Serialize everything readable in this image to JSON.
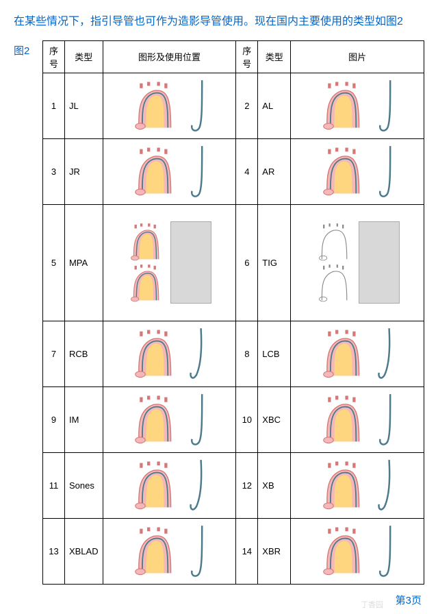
{
  "intro": "在某些情况下，指引导管也可作为造影导管使用。现在国内主要使用的类型如图2",
  "figure_label": "图2",
  "headers": {
    "num": "序号",
    "type": "类型",
    "img_left": "图形及使用位置",
    "img_right": "图片"
  },
  "rows": [
    {
      "n1": "1",
      "t1": "JL",
      "n2": "2",
      "t2": "AL",
      "tall": false
    },
    {
      "n1": "3",
      "t1": "JR",
      "n2": "4",
      "t2": "AR",
      "tall": false
    },
    {
      "n1": "5",
      "t1": "MPA",
      "n2": "6",
      "t2": "TIG",
      "tall": true
    },
    {
      "n1": "7",
      "t1": "RCB",
      "n2": "8",
      "t2": "LCB",
      "tall": false
    },
    {
      "n1": "9",
      "t1": "IM",
      "n2": "10",
      "t2": "XBC",
      "tall": false
    },
    {
      "n1": "11",
      "t1": "Sones",
      "n2": "12",
      "t2": "XB",
      "tall": false
    },
    {
      "n1": "13",
      "t1": "XBLAD",
      "n2": "14",
      "t2": "XBR",
      "tall": false
    }
  ],
  "page_number": "第3页",
  "colors": {
    "text_blue": "#0066cc",
    "aorta_fill": "#f4b8b8",
    "aorta_stroke": "#d67878",
    "lumen": "#ffd680",
    "catheter": "#4a7a8c"
  }
}
